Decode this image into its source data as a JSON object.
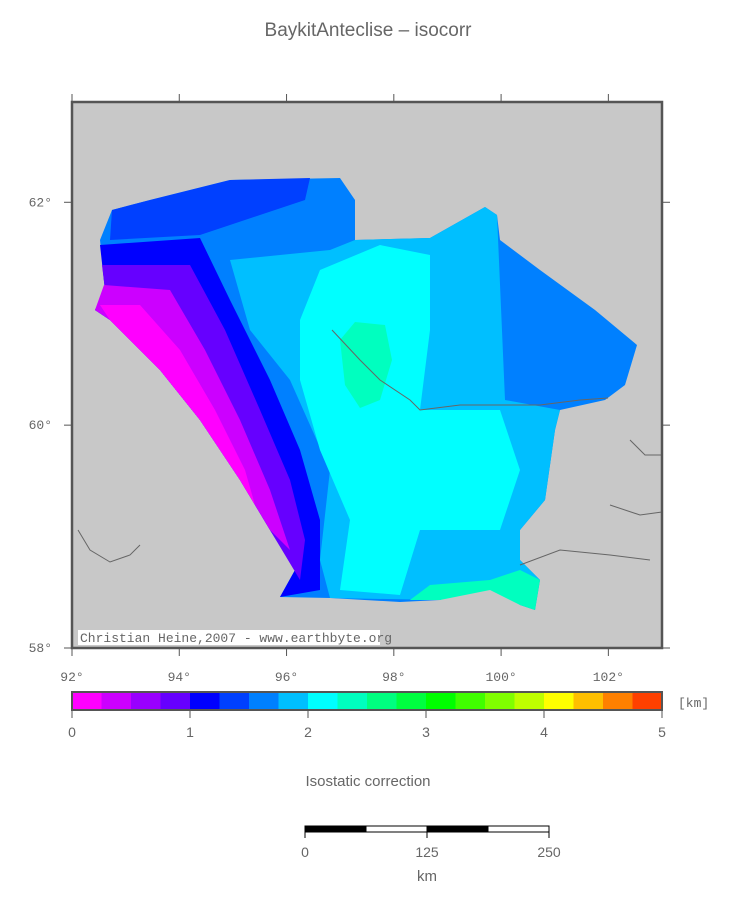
{
  "title": "BaykitAnteclise – isocorr",
  "map": {
    "xlim": [
      92,
      103
    ],
    "ylim": [
      58,
      62.9
    ],
    "xticks": [
      {
        "value": 92,
        "label": "92°"
      },
      {
        "value": 94,
        "label": "94°"
      },
      {
        "value": 96,
        "label": "96°"
      },
      {
        "value": 98,
        "label": "98°"
      },
      {
        "value": 100,
        "label": "100°"
      },
      {
        "value": 102,
        "label": "102°"
      }
    ],
    "yticks": [
      {
        "value": 58,
        "label": "58°"
      },
      {
        "value": 60,
        "label": "60°"
      },
      {
        "value": 62,
        "label": "62°"
      }
    ],
    "credit": "Christian Heine,2007 - www.earthbyte.org"
  },
  "colorbar": {
    "lim": [
      0,
      5
    ],
    "ticks": [
      0,
      1,
      2,
      3,
      4,
      5
    ],
    "unit": "[km]",
    "label": "Isostatic correction",
    "colors": [
      "#ff00ff",
      "#cc00ff",
      "#9900ff",
      "#6600ff",
      "#0000ff",
      "#0040ff",
      "#0080ff",
      "#00bfff",
      "#00ffff",
      "#00ffbf",
      "#00ff80",
      "#00ff40",
      "#00ff00",
      "#40ff00",
      "#80ff00",
      "#bfff00",
      "#ffff00",
      "#ffbf00",
      "#ff8000",
      "#ff4000"
    ]
  },
  "scalebar": {
    "lim": [
      0,
      250
    ],
    "ticks": [
      0,
      125,
      250
    ],
    "label": "km"
  }
}
